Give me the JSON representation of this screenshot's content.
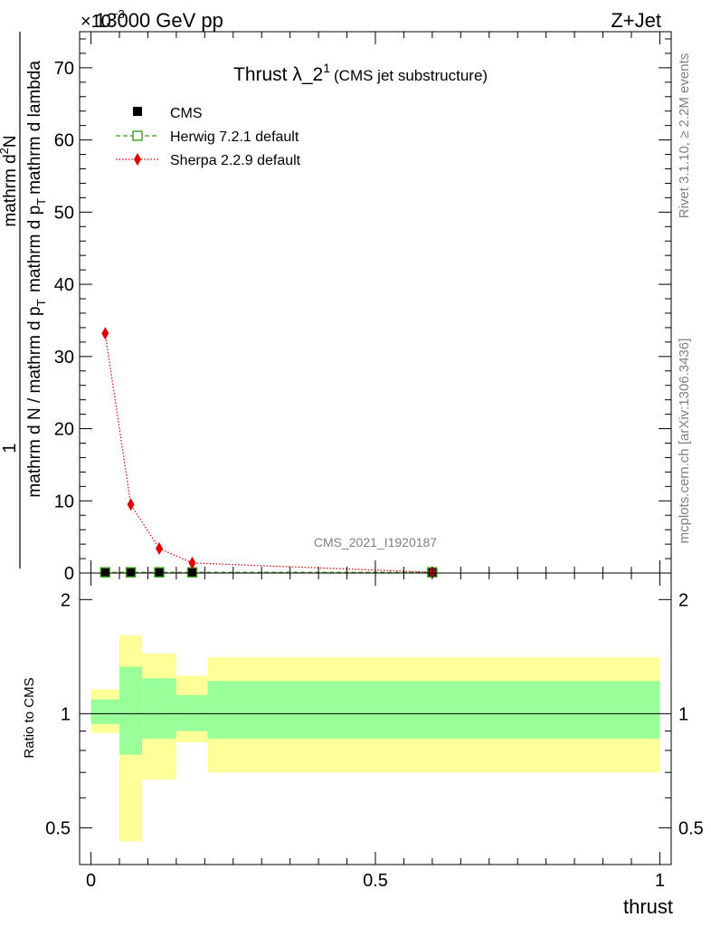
{
  "chart_data": {
    "type": "line",
    "header_left": "13000 GeV pp",
    "header_right": "Z+Jet",
    "title": "Thrust λ_2",
    "title_superscript": "1",
    "title_suffix": "(CMS jet substructure)",
    "analysis_label": "CMS_2021_I1920187",
    "side_label_top": "Rivet 3.1.10, ≥ 2.2M events",
    "side_label_bottom": "mcplots.cern.ch [arXiv:1306.3436]",
    "y_multiplier": "×10",
    "y_multiplier_exponent": "−3",
    "ylabel": {
      "numerator_pre": "1",
      "denominator_pre": "mathrm d N / mathrm d p",
      "sub_T": "T",
      "numerator_main": "mathrm d",
      "numerator_main_sup": "2",
      "numerator_main_tail": "N",
      "denominator_main": "mathrm d p",
      "denominator_main_tail": "mathrm d lambda"
    },
    "xlabel": "thrust",
    "ratio_ylabel": "Ratio to CMS",
    "main_ylim": [
      0,
      75
    ],
    "main_yticks": [
      0,
      10,
      20,
      30,
      40,
      50,
      60,
      70
    ],
    "main_ytick_labels": [
      "0",
      "10",
      "20",
      "30",
      "40",
      "50",
      "60",
      "70"
    ],
    "xlim": [
      -0.02,
      1.02
    ],
    "xticks": [
      0,
      0.5,
      1
    ],
    "xtick_labels": [
      "0",
      "0.5",
      "1"
    ],
    "ratio_ylim_log": [
      0.4,
      2.35
    ],
    "ratio_yticks": [
      0.5,
      1,
      2
    ],
    "ratio_ytick_labels": [
      "0.5",
      "1",
      "2"
    ],
    "bin_edges": [
      0.0,
      0.05,
      0.09,
      0.15,
      0.205,
      1.0
    ],
    "series": [
      {
        "name": "CMS",
        "x": [
          0.025,
          0.07,
          0.12,
          0.178,
          0.6
        ],
        "y": [
          0.12,
          0.12,
          0.12,
          0.12,
          0.1
        ],
        "color": "#000000",
        "marker": "square"
      },
      {
        "name": "Herwig 7.2.1 default",
        "x": [
          0.025,
          0.07,
          0.12,
          0.178,
          0.6
        ],
        "y": [
          0.1,
          0.1,
          0.1,
          0.1,
          0.1
        ],
        "color": "#3a9a1a",
        "marker": "open-square",
        "dash": "dashed"
      },
      {
        "name": "Sherpa 2.2.9 default",
        "x": [
          0.025,
          0.07,
          0.12,
          0.178,
          0.6
        ],
        "y": [
          33.2,
          9.5,
          3.4,
          1.4,
          0.1
        ],
        "color": "#e00000",
        "marker": "diamond",
        "dash": "dotted"
      }
    ],
    "ratio_bands": {
      "inner_color": "#99ff99",
      "outer_color": "#ffff99",
      "inner_low": [
        0.94,
        0.78,
        0.86,
        0.9,
        0.86
      ],
      "inner_high": [
        1.09,
        1.33,
        1.24,
        1.12,
        1.22
      ],
      "outer_low": [
        0.89,
        0.46,
        0.67,
        0.84,
        0.7
      ],
      "outer_high": [
        1.16,
        1.61,
        1.44,
        1.26,
        1.41
      ]
    },
    "legend_position": "top-left",
    "grid": false
  }
}
